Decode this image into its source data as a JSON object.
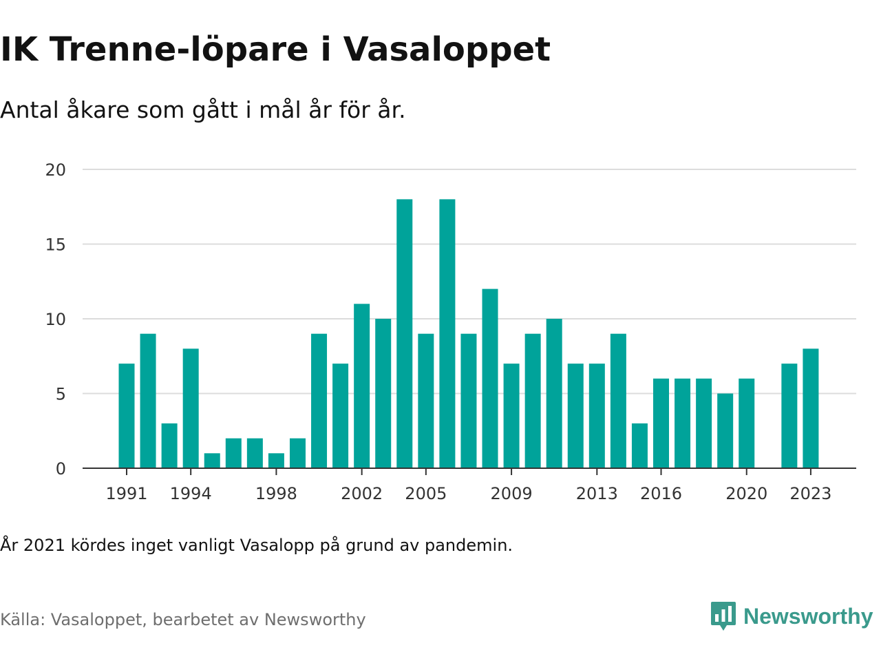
{
  "title": "IK Trenne-löpare i Vasaloppet",
  "subtitle": "Antal åkare som gått i mål år för år.",
  "note": "År 2021 kördes inget vanligt Vasalopp på grund av pandemin.",
  "source": "Källa: Vasaloppet, bearbetet av Newsworthy",
  "brand": {
    "name": "Newsworthy",
    "icon": "newsworthy-logo-icon"
  },
  "colors": {
    "bar": "#00a39a",
    "grid": "#dcdcdc",
    "axis": "#333333",
    "brand": "#3a9a8c"
  },
  "chart_data": {
    "type": "bar",
    "title": "IK Trenne-löpare i Vasaloppet",
    "subtitle": "Antal åkare som gått i mål år för år.",
    "xlabel": "",
    "ylabel": "",
    "ylim": [
      0,
      20
    ],
    "yticks": [
      0,
      5,
      10,
      15,
      20
    ],
    "xticks": [
      "1991",
      "1994",
      "1998",
      "2002",
      "2005",
      "2009",
      "2013",
      "2016",
      "2020",
      "2023"
    ],
    "grid": true,
    "categories": [
      "1991",
      "1992",
      "1993",
      "1994",
      "1995",
      "1996",
      "1997",
      "1998",
      "1999",
      "2000",
      "2001",
      "2002",
      "2003",
      "2004",
      "2005",
      "2006",
      "2007",
      "2008",
      "2009",
      "2010",
      "2011",
      "2012",
      "2013",
      "2014",
      "2015",
      "2016",
      "2017",
      "2018",
      "2019",
      "2020",
      "2021",
      "2022",
      "2023"
    ],
    "values": [
      7,
      9,
      3,
      8,
      1,
      2,
      2,
      1,
      2,
      9,
      7,
      11,
      10,
      18,
      9,
      18,
      9,
      12,
      7,
      9,
      10,
      7,
      7,
      9,
      3,
      6,
      6,
      6,
      5,
      6,
      0,
      7,
      8
    ]
  }
}
